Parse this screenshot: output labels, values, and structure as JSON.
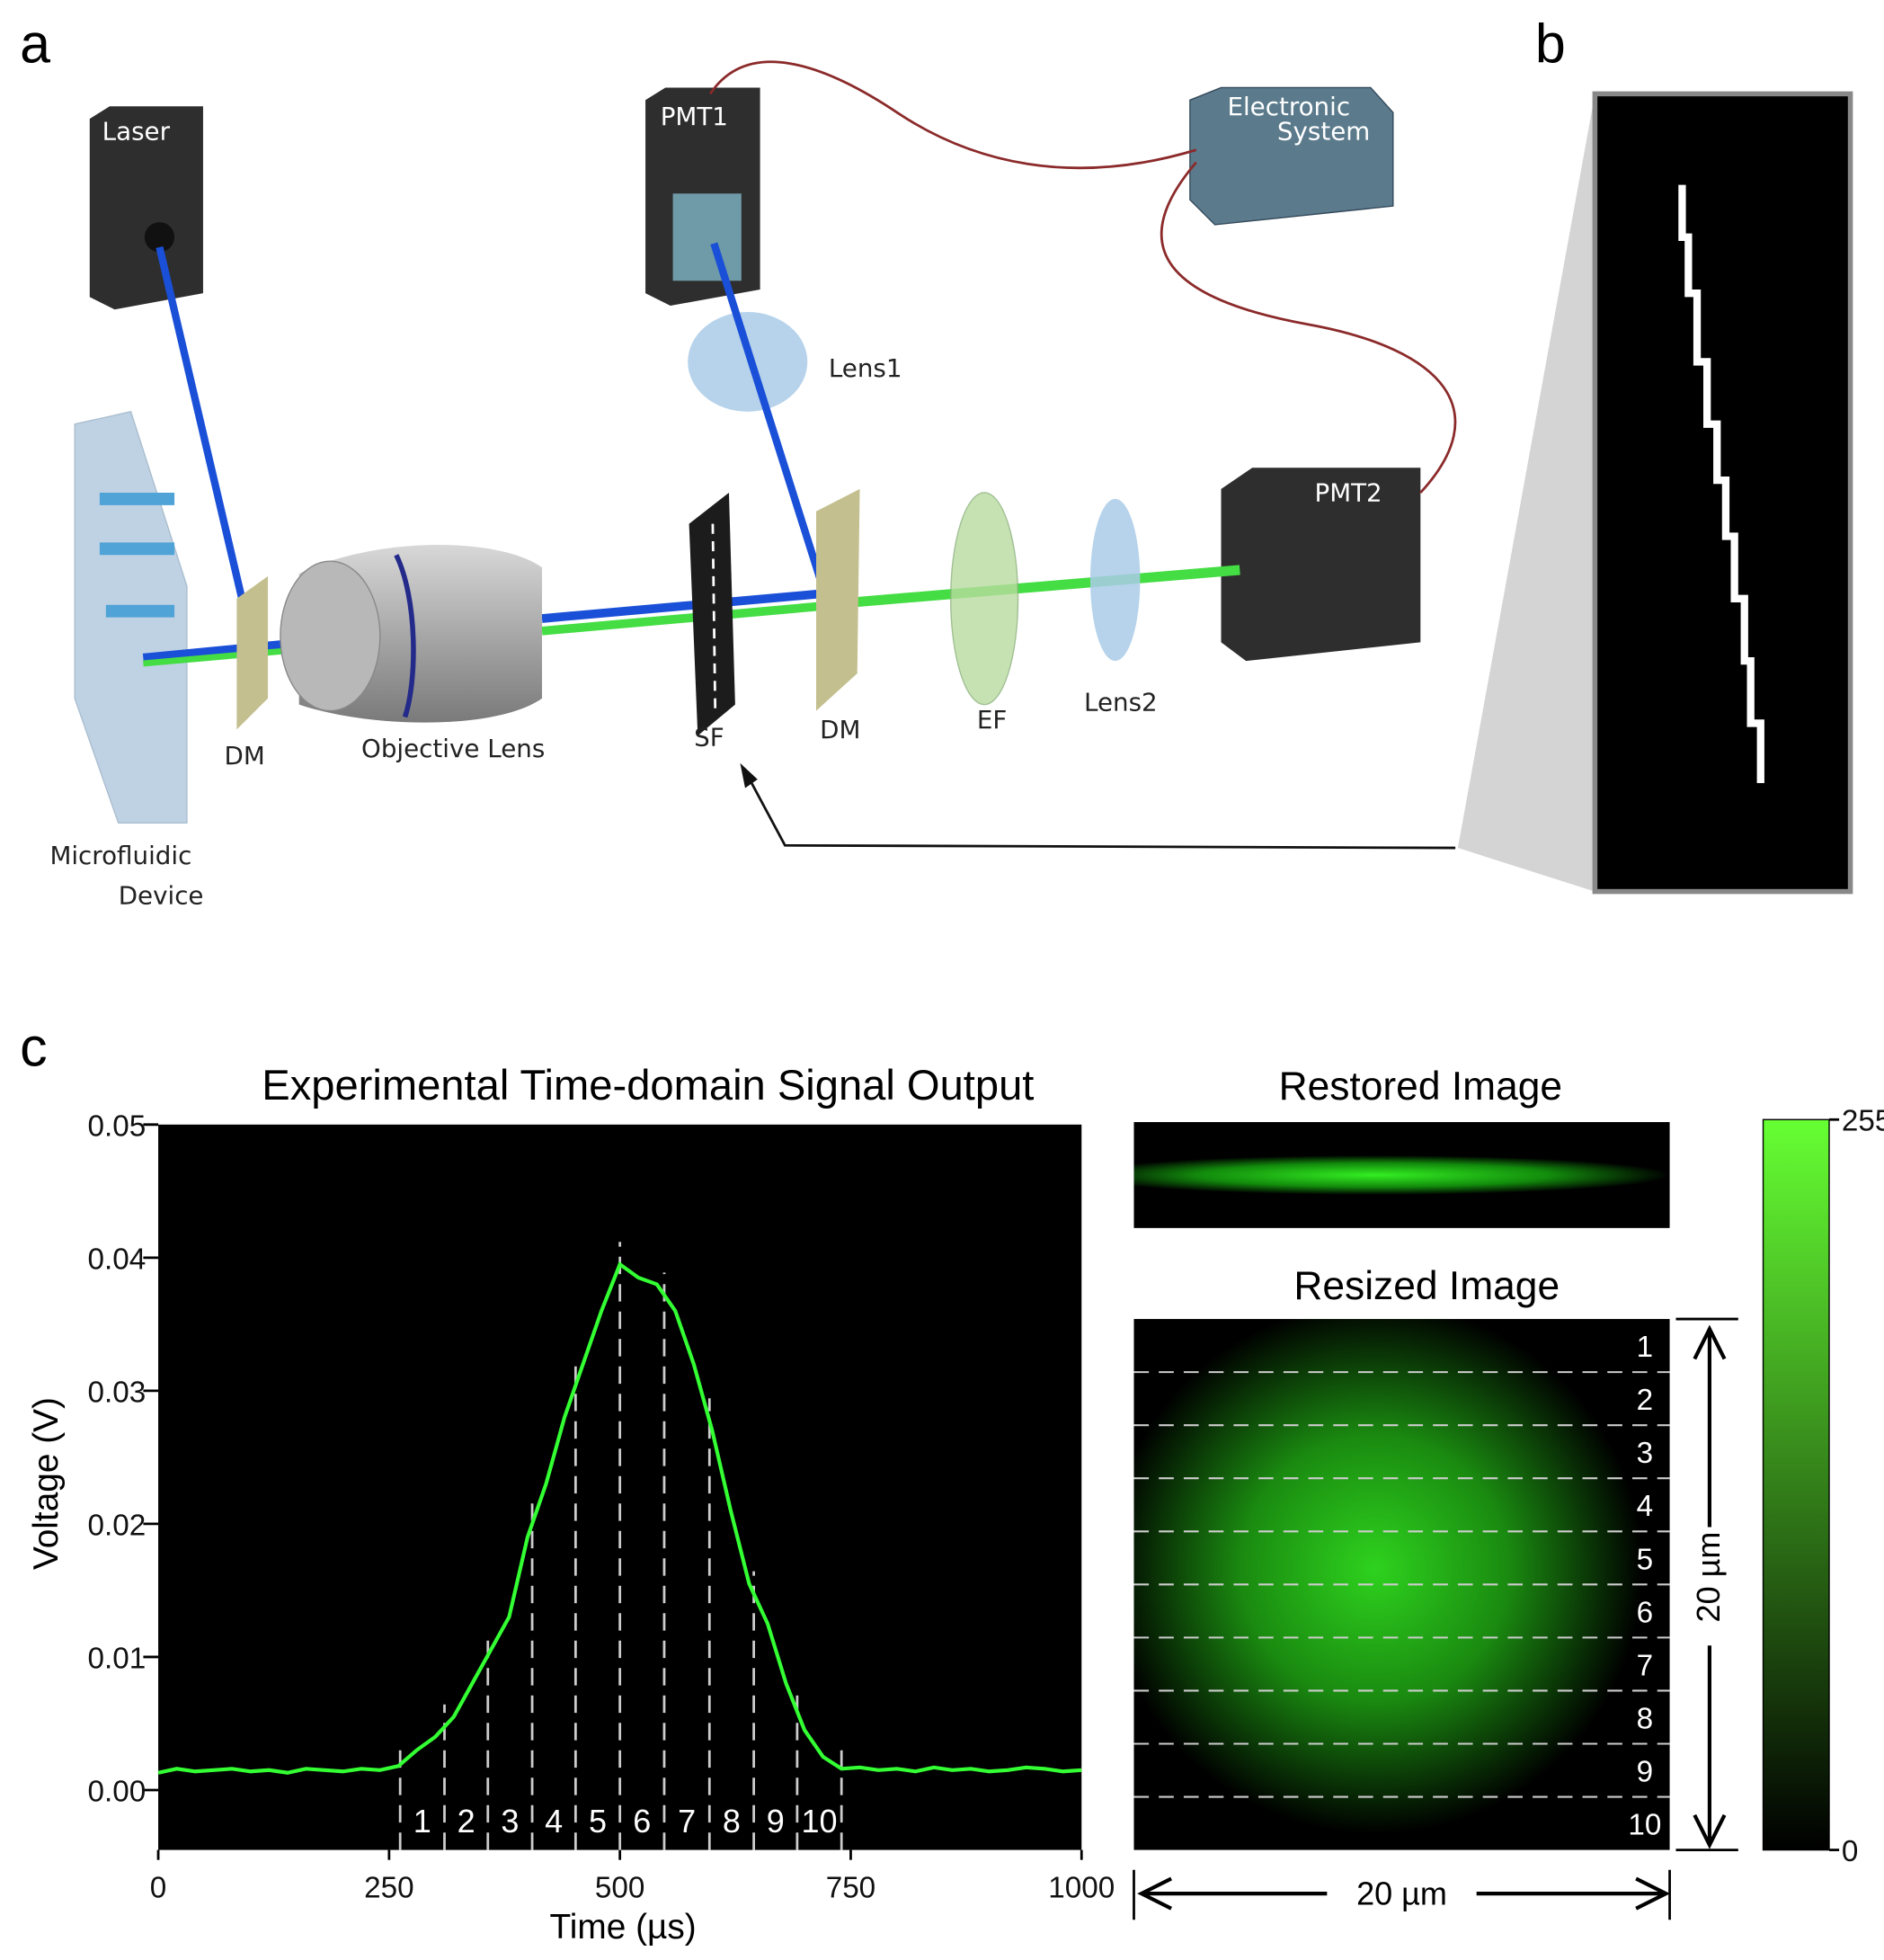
{
  "panel_labels": [
    "a",
    "b",
    "c"
  ],
  "diagram": {
    "laser": "Laser",
    "pmt1": "PMT1",
    "electronic_1": "Electronic",
    "electronic_2": "System",
    "lens1": "Lens1",
    "pmt2": "PMT2",
    "dm1": "DM",
    "objective": "Objective Lens",
    "sf": "SF",
    "dm2": "DM",
    "ef": "EF",
    "lens2": "Lens2",
    "device_1": "Microfluidic",
    "device_2": "Device"
  },
  "chart_data": {
    "type": "line",
    "title": "Experimental Time-domain Signal Output",
    "x_label": "Time (µs)",
    "y_label": "Voltage (V)",
    "color": "#33ff33",
    "x": [
      0,
      20,
      40,
      60,
      80,
      100,
      120,
      140,
      160,
      180,
      200,
      220,
      240,
      260,
      280,
      300,
      320,
      340,
      360,
      380,
      400,
      420,
      440,
      460,
      480,
      500,
      520,
      540,
      560,
      580,
      600,
      620,
      640,
      660,
      680,
      700,
      720,
      740,
      760,
      780,
      800,
      820,
      840,
      860,
      880,
      900,
      920,
      940,
      960,
      980,
      1000
    ],
    "values": [
      0.0013,
      0.0016,
      0.0014,
      0.0015,
      0.0016,
      0.0014,
      0.0015,
      0.0013,
      0.0016,
      0.0015,
      0.0014,
      0.0016,
      0.0015,
      0.0018,
      0.003,
      0.004,
      0.0055,
      0.008,
      0.0105,
      0.013,
      0.019,
      0.023,
      0.028,
      0.032,
      0.036,
      0.0395,
      0.0385,
      0.038,
      0.036,
      0.032,
      0.027,
      0.021,
      0.0155,
      0.0125,
      0.008,
      0.0045,
      0.0025,
      0.0016,
      0.0017,
      0.0015,
      0.0016,
      0.0014,
      0.0017,
      0.0015,
      0.0016,
      0.0014,
      0.0015,
      0.0017,
      0.0016,
      0.0014,
      0.0015
    ],
    "xlim": [
      0,
      1000
    ],
    "xticks": [
      0,
      250,
      500,
      750,
      1000
    ],
    "ylim": [
      -0.0045,
      0.05
    ],
    "yticks": [
      {
        "value": 0,
        "label": "0.00"
      },
      0.01,
      0.02,
      0.03,
      0.04,
      0.05
    ],
    "segments": {
      "bounds": [
        262,
        310,
        357,
        405,
        452,
        500,
        548,
        597,
        645,
        692,
        740
      ],
      "labels": [
        "1",
        "2",
        "3",
        "4",
        "5",
        "6",
        "7",
        "8",
        "9",
        "10"
      ]
    }
  },
  "restored_image": {
    "title": "Restored Image"
  },
  "resized_image": {
    "title": "Resized Image",
    "rows": [
      "1",
      "2",
      "3",
      "4",
      "5",
      "6",
      "7",
      "8",
      "9",
      "10"
    ],
    "height_label": "20 µm",
    "width_label": "20 µm"
  },
  "colorbar": {
    "lim": [
      0,
      255
    ],
    "ticks": [
      0,
      255
    ]
  }
}
